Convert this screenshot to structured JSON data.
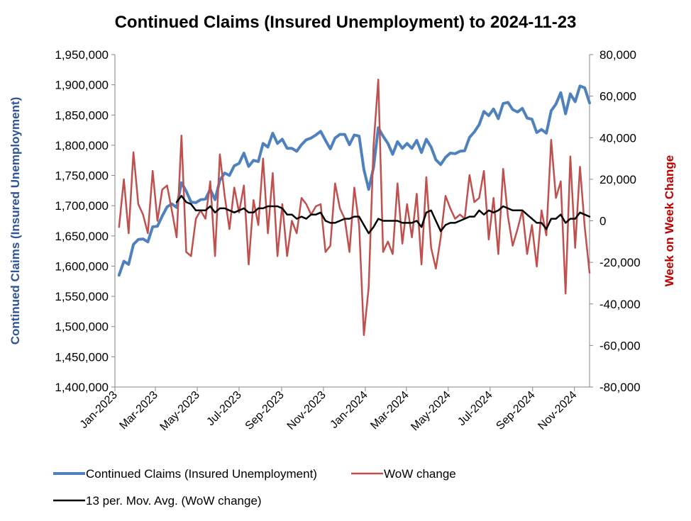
{
  "chart_data": {
    "type": "line",
    "title": "Continued Claims (Insured Unemployment) to 2024-11-23",
    "ylabel_left": "Continued Claims (Insured Unemployment)",
    "ylabel_right": "Week on Week Change",
    "ylim_left": [
      1400000,
      1950000
    ],
    "ylim_right": [
      -80000,
      80000
    ],
    "yticks_left": [
      "1,400,000",
      "1,450,000",
      "1,500,000",
      "1,550,000",
      "1,600,000",
      "1,650,000",
      "1,700,000",
      "1,750,000",
      "1,800,000",
      "1,850,000",
      "1,900,000",
      "1,950,000"
    ],
    "yticks_right": [
      "-80,000",
      "-60,000",
      "-40,000",
      "-20,000",
      "0",
      "20,000",
      "40,000",
      "60,000",
      "80,000"
    ],
    "xticks": [
      "Jan-2023",
      "Mar-2023",
      "May-2023",
      "Jul-2023",
      "Sep-2023",
      "Nov-2023",
      "Jan-2024",
      "Mar-2024",
      "May-2024",
      "Jul-2024",
      "Sep-2024",
      "Nov-2024"
    ],
    "x_range": [
      "2023-01-01",
      "2024-11-23"
    ],
    "x_start": "2023-01-07",
    "week_step_days": 7,
    "legend_position": "bottom",
    "grid": false,
    "series": [
      {
        "name": "Continued Claims (Insured Unemployment)",
        "axis": "left",
        "color": "#4f81bd",
        "values": [
          1585000,
          1608000,
          1603000,
          1636000,
          1644000,
          1645000,
          1640000,
          1665000,
          1666000,
          1683000,
          1698000,
          1703000,
          1697000,
          1738000,
          1724000,
          1706000,
          1705000,
          1710000,
          1711000,
          1727000,
          1710000,
          1742000,
          1754000,
          1750000,
          1766000,
          1770000,
          1787000,
          1765000,
          1775000,
          1773000,
          1803000,
          1797000,
          1820000,
          1803000,
          1810000,
          1795000,
          1795000,
          1790000,
          1801000,
          1809000,
          1812000,
          1817000,
          1823000,
          1808000,
          1794000,
          1812000,
          1818000,
          1818000,
          1801000,
          1817000,
          1815000,
          1760000,
          1727000,
          1763000,
          1829000,
          1815000,
          1803000,
          1785000,
          1806000,
          1795000,
          1803000,
          1795000,
          1808000,
          1788000,
          1810000,
          1797000,
          1776000,
          1768000,
          1780000,
          1787000,
          1786000,
          1790000,
          1791000,
          1813000,
          1822000,
          1834000,
          1856000,
          1849000,
          1860000,
          1844000,
          1869000,
          1871000,
          1859000,
          1855000,
          1861000,
          1845000,
          1843000,
          1821000,
          1826000,
          1820000,
          1857000,
          1868000,
          1887000,
          1852000,
          1885000,
          1872000,
          1898000,
          1895000,
          1870000
        ]
      },
      {
        "name": "WoW change",
        "axis": "right",
        "color": "#c0504d",
        "values": [
          -3000,
          20000,
          -6000,
          33000,
          8000,
          3000,
          -6000,
          24000,
          0,
          15000,
          17000,
          5000,
          -8000,
          41000,
          -15000,
          -17000,
          1000,
          5000,
          1000,
          19000,
          -17000,
          32000,
          12000,
          -4000,
          16000,
          4000,
          17000,
          -21000,
          10000,
          -2000,
          30000,
          -6000,
          23000,
          -17000,
          8000,
          -17000,
          0,
          -6000,
          11000,
          8000,
          3000,
          7000,
          8000,
          -15000,
          -12000,
          18000,
          6000,
          1000,
          -15000,
          16000,
          -2000,
          -55000,
          -32000,
          36000,
          68000,
          -15000,
          -10000,
          -16000,
          18000,
          -11000,
          8000,
          -8000,
          13000,
          -21000,
          21000,
          -13000,
          -23000,
          -8000,
          12000,
          6000,
          1000,
          3000,
          1000,
          22000,
          9000,
          11000,
          24000,
          -9000,
          11000,
          -16000,
          25000,
          2000,
          -12000,
          -4000,
          5000,
          -16000,
          -2000,
          -22000,
          5000,
          -7000,
          39000,
          11000,
          19000,
          -35000,
          31000,
          -13000,
          26000,
          -3000,
          -25000
        ]
      },
      {
        "name": "13 per. Mov. Avg. (WoW change)",
        "axis": "right",
        "color": "#000000",
        "values": [
          null,
          null,
          null,
          null,
          null,
          null,
          null,
          null,
          null,
          null,
          null,
          null,
          9000,
          12000,
          9000,
          8000,
          5000,
          5000,
          5000,
          7000,
          4000,
          6000,
          6000,
          5000,
          4000,
          5000,
          6000,
          4000,
          4000,
          6000,
          6000,
          7000,
          7000,
          7000,
          6000,
          3000,
          3000,
          1000,
          2000,
          1000,
          3000,
          3000,
          4000,
          0,
          -1000,
          -1000,
          0,
          1000,
          1000,
          2000,
          2000,
          -2000,
          -6000,
          -3000,
          1000,
          0,
          0,
          0,
          0,
          -1000,
          -1000,
          -1000,
          0,
          -3000,
          4000,
          5000,
          0,
          -5000,
          -2000,
          -1000,
          -1000,
          0,
          1000,
          2000,
          2000,
          5000,
          3000,
          5000,
          4000,
          5000,
          7000,
          6000,
          5000,
          5000,
          5000,
          3000,
          1000,
          -1000,
          -1000,
          -4000,
          1000,
          1000,
          3000,
          -1000,
          1000,
          1000,
          4000,
          3000,
          2000
        ]
      }
    ]
  }
}
